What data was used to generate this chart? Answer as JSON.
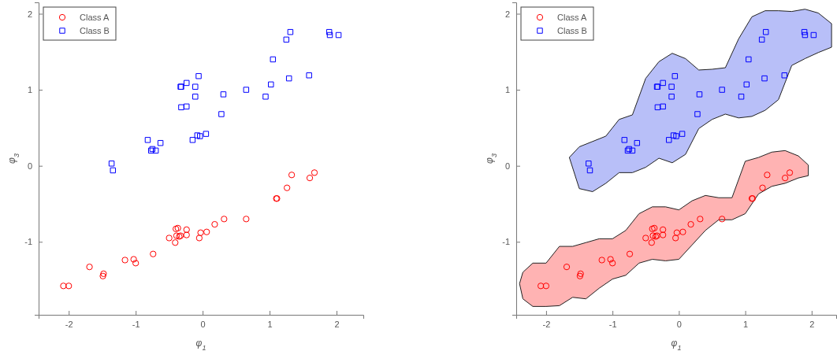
{
  "chart_data": [
    {
      "type": "scatter",
      "xlabel": "φ$_{1}$",
      "ylabel": "φ$_{3}$",
      "xlim": [
        -2.45,
        2.4
      ],
      "ylim": [
        -1.96,
        2.15
      ],
      "xticks": [
        -2,
        -1,
        0,
        1,
        2
      ],
      "yticks": [
        -1,
        0,
        1,
        2
      ],
      "grid": false,
      "legend": "top left",
      "series": [
        {
          "name": "Class A",
          "color": "#ff0000",
          "marker": "circle",
          "x": [
            -2.08,
            -2.0,
            -1.69,
            -1.48,
            -1.49,
            -1.16,
            -1.03,
            -1.0,
            -0.74,
            -0.5,
            -0.41,
            -0.4,
            -0.37,
            -0.39,
            -0.35,
            -0.33,
            -0.24,
            -0.24,
            -0.05,
            -0.03,
            0.06,
            0.18,
            0.32,
            0.65,
            1.1,
            1.11,
            1.26,
            1.33,
            1.6,
            1.67
          ],
          "values": [
            -1.58,
            -1.58,
            -1.33,
            -1.42,
            -1.45,
            -1.24,
            -1.23,
            -1.28,
            -1.16,
            -0.95,
            -1.01,
            -0.83,
            -0.82,
            -0.92,
            -0.93,
            -0.92,
            -0.84,
            -0.91,
            -0.95,
            -0.88,
            -0.87,
            -0.77,
            -0.7,
            -0.7,
            -0.43,
            -0.43,
            -0.29,
            -0.12,
            -0.16,
            -0.09
          ]
        },
        {
          "name": "Class B",
          "color": "#0000ff",
          "marker": "square",
          "x": [
            -1.36,
            -1.34,
            -0.82,
            -0.77,
            -0.75,
            -0.7,
            -0.63,
            -0.32,
            -0.33,
            -0.24,
            -0.32,
            -0.24,
            -0.11,
            -0.11,
            -0.06,
            -0.15,
            -0.08,
            -0.04,
            0.05,
            0.28,
            0.31,
            0.65,
            0.94,
            1.02,
            1.05,
            1.25,
            1.31,
            1.29,
            1.59,
            1.89,
            1.9,
            2.03
          ],
          "values": [
            0.03,
            -0.06,
            0.34,
            0.2,
            0.22,
            0.2,
            0.3,
            1.04,
            1.04,
            1.09,
            0.77,
            0.78,
            1.04,
            0.91,
            1.18,
            0.34,
            0.4,
            0.39,
            0.42,
            0.68,
            0.94,
            1.0,
            0.91,
            1.07,
            1.4,
            1.66,
            1.76,
            1.15,
            1.19,
            1.76,
            1.72,
            1.72
          ]
        }
      ]
    },
    {
      "type": "scatter",
      "xlabel": "φ$_{1}$",
      "ylabel": "φ$_{3}$",
      "xlim": [
        -2.45,
        2.37
      ],
      "ylim": [
        -1.96,
        2.15
      ],
      "xticks": [
        -2,
        -1,
        0,
        1,
        2
      ],
      "yticks": [
        -1,
        0,
        1,
        2
      ],
      "grid": false,
      "legend": "top left",
      "series": [
        {
          "type": "area",
          "color": "#ffb3b3",
          "x": [
            -2.4,
            -2.35,
            -2.2,
            -2.0,
            -1.8,
            -1.6,
            -1.4,
            -1.2,
            -1.0,
            -0.8,
            -0.6,
            -0.4,
            -0.2,
            0,
            0.2,
            0.4,
            0.6,
            0.8,
            1.0,
            1.2,
            1.4,
            1.6,
            1.8,
            1.95,
            1.95,
            1.8,
            1.6,
            1.4,
            1.2,
            1.0,
            0.8,
            0.6,
            0.4,
            0.2,
            0,
            -0.2,
            -0.4,
            -0.6,
            -0.8,
            -1.0,
            -1.2,
            -1.4,
            -1.6,
            -1.8,
            -2.0,
            -2.2,
            -2.35
          ],
          "values": [
            -1.55,
            -1.4,
            -1.28,
            -1.28,
            -1.06,
            -1.06,
            -1.01,
            -0.96,
            -0.96,
            -0.85,
            -0.63,
            -0.54,
            -0.54,
            -0.58,
            -0.46,
            -0.39,
            -0.42,
            -0.42,
            0.06,
            0.11,
            0.18,
            0.2,
            0.13,
            0.01,
            -0.13,
            -0.16,
            -0.23,
            -0.27,
            -0.37,
            -0.63,
            -0.71,
            -0.71,
            -0.85,
            -1.04,
            -1.23,
            -1.25,
            -1.23,
            -1.28,
            -1.44,
            -1.49,
            -1.61,
            -1.75,
            -1.73,
            -1.84,
            -1.85,
            -1.85,
            -1.75
          ]
        },
        {
          "type": "area",
          "color": "#b8bff8",
          "x": [
            -1.65,
            -1.5,
            -1.3,
            -1.1,
            -0.9,
            -0.7,
            -0.5,
            -0.3,
            -0.1,
            0.1,
            0.3,
            0.5,
            0.7,
            0.9,
            1.1,
            1.3,
            1.5,
            1.7,
            1.9,
            2.1,
            2.3,
            2.3,
            2.1,
            1.9,
            1.7,
            1.5,
            1.3,
            1.1,
            0.9,
            0.7,
            0.5,
            0.3,
            0.1,
            -0.1,
            -0.3,
            -0.5,
            -0.7,
            -0.9,
            -1.1,
            -1.3,
            -1.5
          ],
          "values": [
            0.11,
            0.25,
            0.32,
            0.39,
            0.61,
            0.67,
            1.15,
            1.37,
            1.48,
            1.41,
            1.26,
            1.27,
            1.29,
            1.67,
            1.96,
            2.04,
            2.04,
            2.03,
            2.06,
            2.01,
            1.87,
            1.56,
            1.49,
            1.41,
            1.32,
            0.87,
            0.73,
            0.65,
            0.63,
            0.68,
            0.61,
            0.49,
            0.15,
            0.04,
            0.1,
            -0.02,
            -0.09,
            -0.09,
            -0.23,
            -0.34,
            -0.3
          ]
        },
        {
          "name": "Class A",
          "color": "#ff0000",
          "marker": "circle",
          "x": [
            -2.08,
            -2.0,
            -1.69,
            -1.48,
            -1.49,
            -1.16,
            -1.03,
            -1.0,
            -0.74,
            -0.5,
            -0.41,
            -0.4,
            -0.37,
            -0.39,
            -0.35,
            -0.33,
            -0.24,
            -0.24,
            -0.05,
            -0.03,
            0.06,
            0.18,
            0.32,
            0.65,
            1.1,
            1.11,
            1.26,
            1.33,
            1.6,
            1.67
          ],
          "values": [
            -1.58,
            -1.58,
            -1.33,
            -1.42,
            -1.45,
            -1.24,
            -1.23,
            -1.28,
            -1.16,
            -0.95,
            -1.01,
            -0.83,
            -0.82,
            -0.92,
            -0.93,
            -0.92,
            -0.84,
            -0.91,
            -0.95,
            -0.88,
            -0.87,
            -0.77,
            -0.7,
            -0.7,
            -0.43,
            -0.43,
            -0.29,
            -0.12,
            -0.16,
            -0.09
          ]
        },
        {
          "name": "Class B",
          "color": "#0000ff",
          "marker": "square",
          "x": [
            -1.36,
            -1.34,
            -0.82,
            -0.77,
            -0.75,
            -0.7,
            -0.63,
            -0.32,
            -0.33,
            -0.24,
            -0.32,
            -0.24,
            -0.11,
            -0.11,
            -0.06,
            -0.15,
            -0.08,
            -0.04,
            0.05,
            0.28,
            0.31,
            0.65,
            0.94,
            1.02,
            1.05,
            1.25,
            1.31,
            1.29,
            1.59,
            1.89,
            1.9,
            2.03
          ],
          "values": [
            0.03,
            -0.06,
            0.34,
            0.2,
            0.22,
            0.2,
            0.3,
            1.04,
            1.04,
            1.09,
            0.77,
            0.78,
            1.04,
            0.91,
            1.18,
            0.34,
            0.4,
            0.39,
            0.42,
            0.68,
            0.94,
            1.0,
            0.91,
            1.07,
            1.4,
            1.66,
            1.76,
            1.15,
            1.19,
            1.76,
            1.72,
            1.72
          ]
        }
      ]
    }
  ]
}
